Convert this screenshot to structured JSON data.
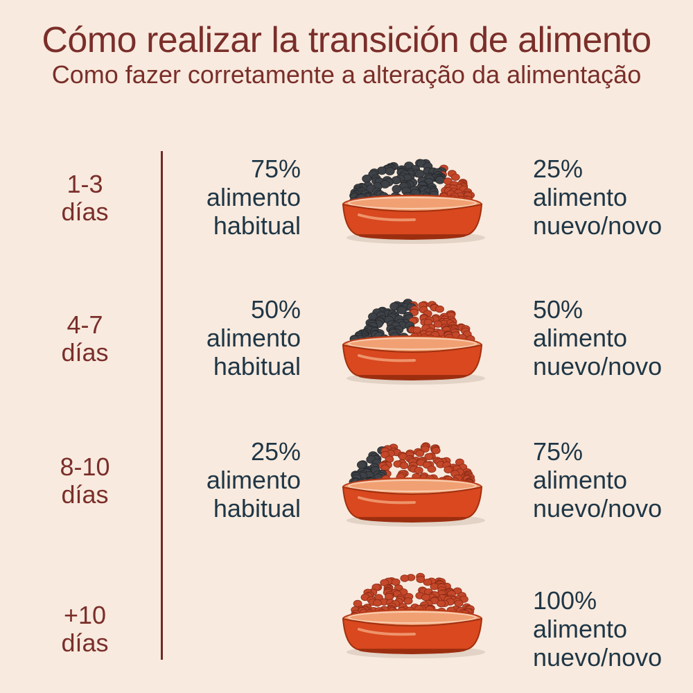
{
  "header": {
    "title": "Cómo realizar la transición de alimento",
    "subtitle": "Como fazer corretamente a alteração da alimentação"
  },
  "colors": {
    "background": "#f8eade",
    "heading": "#7a2e2a",
    "body_text": "#1f3646",
    "bowl": "#d9481f",
    "old_food": "#3e4247",
    "new_food": "#c4472a"
  },
  "rows": [
    {
      "days_range": "1-3",
      "days_unit": "días",
      "old_percent": "75%",
      "old_line1": "alimento",
      "old_line2": "habitual",
      "new_percent": "25%",
      "new_line1": "alimento",
      "new_line2": "nuevo/novo",
      "old_fraction": 0.75,
      "bowl_icon": "food-bowl-icon"
    },
    {
      "days_range": "4-7",
      "days_unit": "días",
      "old_percent": "50%",
      "old_line1": "alimento",
      "old_line2": "habitual",
      "new_percent": "50%",
      "new_line1": "alimento",
      "new_line2": "nuevo/novo",
      "old_fraction": 0.5,
      "bowl_icon": "food-bowl-icon"
    },
    {
      "days_range": "8-10",
      "days_unit": "días",
      "old_percent": "25%",
      "old_line1": "alimento",
      "old_line2": "habitual",
      "new_percent": "75%",
      "new_line1": "alimento",
      "new_line2": "nuevo/novo",
      "old_fraction": 0.25,
      "bowl_icon": "food-bowl-icon"
    },
    {
      "days_range": "+10",
      "days_unit": "días",
      "new_percent": "100%",
      "new_line1": "alimento",
      "new_line2": "nuevo/novo",
      "old_fraction": 0,
      "bowl_icon": "food-bowl-icon"
    }
  ]
}
